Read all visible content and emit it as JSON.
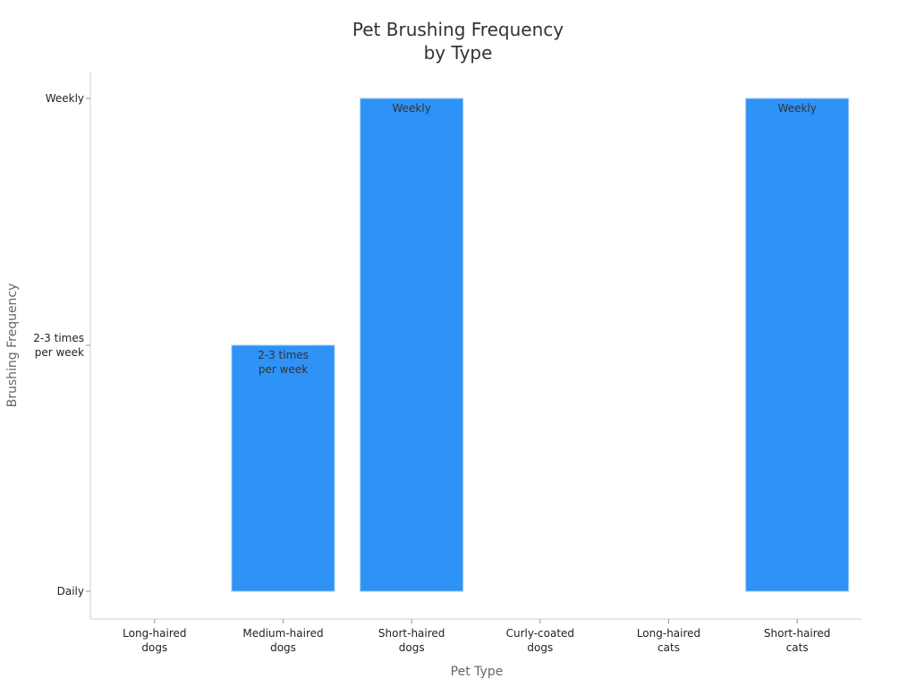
{
  "chart_data": {
    "type": "bar",
    "title": [
      "Pet Brushing Frequency",
      "by Type"
    ],
    "xlabel": "Pet Type",
    "ylabel": "Brushing Frequency",
    "categories": [
      [
        "Long-haired",
        "dogs"
      ],
      [
        "Medium-haired",
        "dogs"
      ],
      [
        "Short-haired",
        "dogs"
      ],
      [
        "Curly-coated",
        "dogs"
      ],
      [
        "Long-haired",
        "cats"
      ],
      [
        "Short-haired",
        "cats"
      ]
    ],
    "y_categories": [
      [
        "Daily"
      ],
      [
        "2-3 times",
        "per week"
      ],
      [
        "Weekly"
      ]
    ],
    "values": [
      "Daily",
      "2-3 times per week",
      "Weekly",
      "Daily",
      "Daily",
      "Weekly"
    ],
    "value_levels": [
      0,
      1,
      2,
      0,
      0,
      2
    ],
    "bar_labels": [
      [],
      [
        "2-3 times",
        "per week"
      ],
      [
        "Weekly"
      ],
      [],
      [],
      [
        "Weekly"
      ]
    ],
    "bar_color": "#2e92f6",
    "grid": false
  }
}
